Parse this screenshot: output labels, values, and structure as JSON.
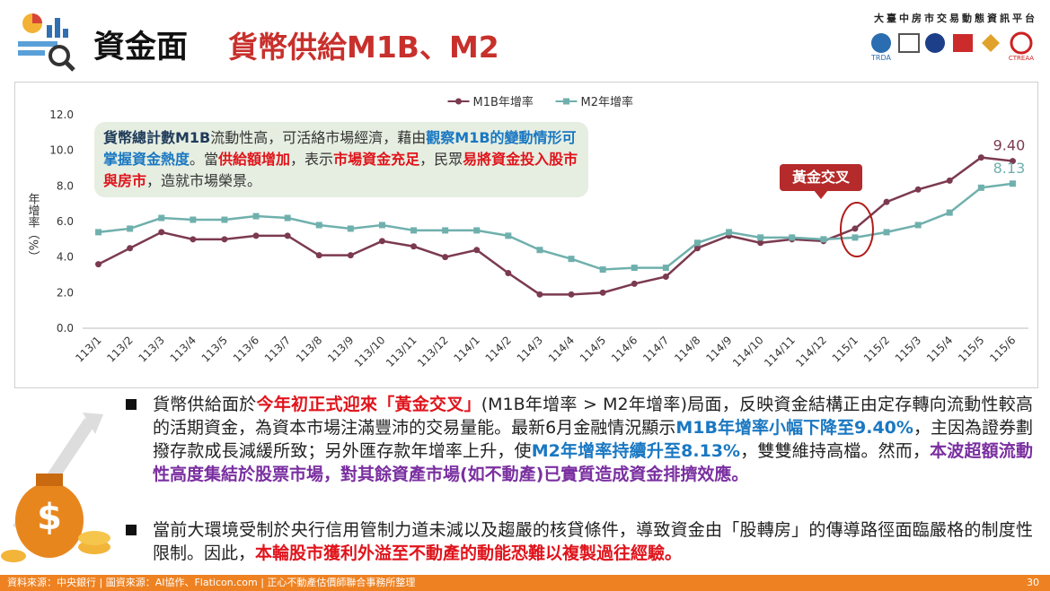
{
  "header": {
    "title": "資金面",
    "subtitle": "貨幣供給M1B、M2",
    "platform": "大臺中房市交易動態資訊平台",
    "logo_left": "TRDA",
    "logo_right": "CTREAA"
  },
  "chart_data": {
    "type": "line",
    "categories": [
      "113/1",
      "113/2",
      "113/3",
      "113/4",
      "113/5",
      "113/6",
      "113/7",
      "113/8",
      "113/9",
      "113/10",
      "113/11",
      "113/12",
      "114/1",
      "114/2",
      "114/3",
      "114/4",
      "114/5",
      "114/6",
      "114/7",
      "114/8",
      "114/9",
      "114/10",
      "114/11",
      "114/12",
      "115/1",
      "115/2",
      "115/3",
      "115/4",
      "115/5",
      "115/6"
    ],
    "y_label": "年增率（%）",
    "ylim": [
      0,
      12
    ],
    "yticks": [
      {
        "value": 0,
        "label": "0.0"
      },
      {
        "value": 2,
        "label": "2.0"
      },
      {
        "value": 4,
        "label": "4.0"
      },
      {
        "value": 6,
        "label": "6.0"
      },
      {
        "value": 8,
        "label": "8.0"
      },
      {
        "value": 10,
        "label": "10.0"
      },
      {
        "value": 12,
        "label": "12.0"
      }
    ],
    "grid": false,
    "legend": "top",
    "series": [
      {
        "name": "M1B年增率",
        "color": "#7b3a4f",
        "marker": "circle",
        "values": [
          3.6,
          4.5,
          5.4,
          5.0,
          5.0,
          5.2,
          5.2,
          4.1,
          4.1,
          4.9,
          4.6,
          4.0,
          4.4,
          3.1,
          1.9,
          1.9,
          2.0,
          2.5,
          2.9,
          4.5,
          5.2,
          4.8,
          5.0,
          4.9,
          5.6,
          7.1,
          7.8,
          8.3,
          9.6,
          9.4
        ],
        "value_labels": [
          null,
          null,
          null,
          null,
          null,
          null,
          null,
          null,
          null,
          null,
          null,
          null,
          null,
          null,
          null,
          null,
          null,
          null,
          null,
          null,
          null,
          null,
          null,
          null,
          null,
          null,
          null,
          null,
          null,
          "9.40"
        ]
      },
      {
        "name": "M2年增率",
        "color": "#6fb0ad",
        "marker": "square",
        "values": [
          5.4,
          5.6,
          6.2,
          6.1,
          6.1,
          6.3,
          6.2,
          5.8,
          5.6,
          5.8,
          5.5,
          5.5,
          5.5,
          5.2,
          4.4,
          3.9,
          3.3,
          3.4,
          3.4,
          4.8,
          5.4,
          5.1,
          5.1,
          5.0,
          5.1,
          5.4,
          5.8,
          6.5,
          7.9,
          8.13
        ],
        "value_labels": [
          null,
          null,
          null,
          null,
          null,
          null,
          null,
          null,
          null,
          null,
          null,
          null,
          null,
          null,
          null,
          null,
          null,
          null,
          null,
          null,
          null,
          null,
          null,
          null,
          null,
          null,
          null,
          null,
          null,
          "8.13"
        ]
      }
    ],
    "annotation": [
      {
        "text": "貨幣總計數M1B",
        "style": "dark-bold"
      },
      {
        "text": "流動性高，可活絡市場經濟，藉由",
        "style": "plain"
      },
      {
        "text": "觀察M1B的變動情形可掌握資金熱度",
        "style": "blue-bold"
      },
      {
        "text": "。當",
        "style": "plain"
      },
      {
        "text": "供給額增加",
        "style": "red-bold"
      },
      {
        "text": "，表示",
        "style": "plain"
      },
      {
        "text": "市場資金充足",
        "style": "red-bold"
      },
      {
        "text": "，民眾",
        "style": "plain"
      },
      {
        "text": "易將資金投入股市與房市",
        "style": "red-bold"
      },
      {
        "text": "，造就市場榮景。",
        "style": "plain"
      }
    ],
    "callout": "黃金交叉"
  },
  "bullets": [
    [
      {
        "text": "貨幣供給面於",
        "style": "plain"
      },
      {
        "text": "今年初正式迎來「黃金交叉」",
        "style": "red-bold"
      },
      {
        "text": "(M1B年增率 > M2年增率)局面，反映資金結構正由定存轉向流動性較高的活期資金，為資本市場注滿豐沛的交易量能。最新6月金融情況顯示",
        "style": "plain"
      },
      {
        "text": "M1B年增率小幅下降至9.40%",
        "style": "blue-bold"
      },
      {
        "text": "，主因為證券劃撥存款成長減緩所致；另外匯存款年增率上升，使",
        "style": "plain"
      },
      {
        "text": "M2年增率持續升至8.13%",
        "style": "blue-bold"
      },
      {
        "text": "，雙雙維持高檔。然而，",
        "style": "plain"
      },
      {
        "text": "本波超額流動性高度集結於股票市場，對其餘資產市場(如不動產)已實質造成資金排擠效應。",
        "style": "purple-bold"
      }
    ],
    [
      {
        "text": "當前大環境受制於央行信用管制力道未減以及趨嚴的核貸條件，導致資金由「股轉房」的傳導路徑面臨嚴格的制度性限制。因此，",
        "style": "plain"
      },
      {
        "text": "本輪股市獲利外溢至不動產的動能恐難以複製過往經驗。",
        "style": "red-bold"
      }
    ]
  ],
  "footer": {
    "source": "資料來源：中央銀行 | 圖資來源：AI協作、Flaticon.com | 正心不動產估價師聯合事務所整理",
    "page": "30"
  }
}
